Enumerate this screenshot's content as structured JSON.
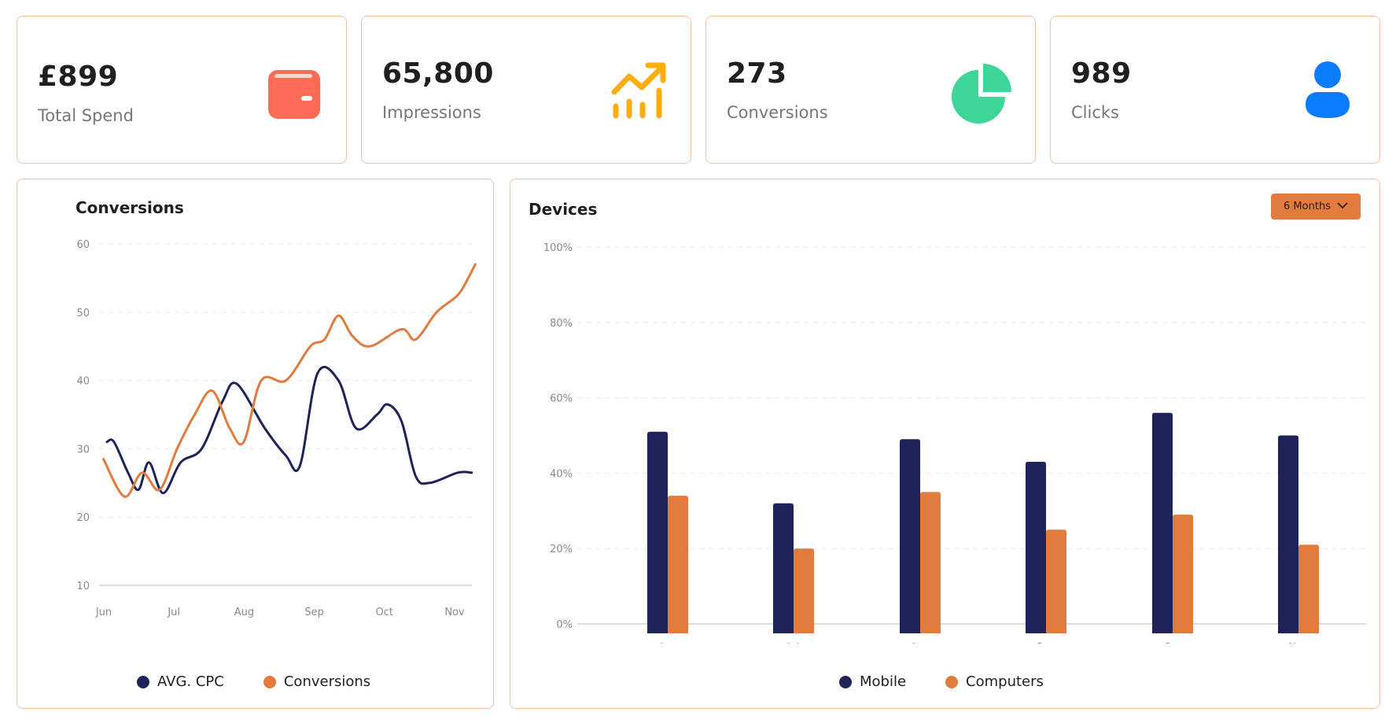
{
  "stats": [
    {
      "value": "£899",
      "label": "Total Spend",
      "icon": "wallet-icon",
      "color": "#ff6b57"
    },
    {
      "value": "65,800",
      "label": "Impressions",
      "icon": "trending-up-icon",
      "color": "#ffad0f"
    },
    {
      "value": "273",
      "label": "Conversions",
      "icon": "pie-chart-icon",
      "color": "#3dd598"
    },
    {
      "value": "989",
      "label": "Clicks",
      "icon": "user-icon",
      "color": "#0b7cff"
    }
  ],
  "conversions_panel": {
    "title": "Conversions",
    "legend": [
      {
        "label": "AVG. CPC",
        "color": "#1e2359"
      },
      {
        "label": "Conversions",
        "color": "#e27c3e"
      }
    ]
  },
  "devices_panel": {
    "title": "Devices",
    "dropdown_label": "6 Months",
    "legend": [
      {
        "label": "Mobile",
        "color": "#1e2359"
      },
      {
        "label": "Computers",
        "color": "#e27c3e"
      }
    ]
  },
  "chart_data": [
    {
      "type": "line",
      "title": "Conversions",
      "categories": [
        "Jun",
        "Jul",
        "Aug",
        "Sep",
        "Oct",
        "Nov"
      ],
      "yticks": [
        10,
        20,
        30,
        40,
        50,
        60
      ],
      "ylim": [
        10,
        60
      ],
      "series": [
        {
          "name": "AVG. CPC",
          "color": "#1e2359",
          "points": [
            [
              0,
              31
            ],
            [
              0.1,
              31
            ],
            [
              0.3,
              26.5
            ],
            [
              0.45,
              24
            ],
            [
              0.6,
              28
            ],
            [
              0.8,
              23.5
            ],
            [
              1.05,
              28
            ],
            [
              1.35,
              30
            ],
            [
              1.65,
              37
            ],
            [
              1.85,
              39.5
            ],
            [
              2.25,
              33
            ],
            [
              2.55,
              29
            ],
            [
              2.75,
              27.5
            ],
            [
              3.0,
              41
            ],
            [
              3.3,
              40
            ],
            [
              3.55,
              33
            ],
            [
              3.85,
              35
            ],
            [
              4.0,
              36.5
            ],
            [
              4.2,
              34
            ],
            [
              4.4,
              26
            ],
            [
              4.6,
              25
            ],
            [
              5.0,
              26.5
            ],
            [
              5.2,
              26.5
            ]
          ]
        },
        {
          "name": "Conversions",
          "color": "#e27c3e",
          "points": [
            [
              -0.05,
              28.5
            ],
            [
              0.25,
              23
            ],
            [
              0.5,
              26.5
            ],
            [
              0.75,
              24
            ],
            [
              1.0,
              30
            ],
            [
              1.25,
              35
            ],
            [
              1.5,
              38.5
            ],
            [
              1.75,
              33
            ],
            [
              1.95,
              31
            ],
            [
              2.2,
              40
            ],
            [
              2.55,
              40
            ],
            [
              2.9,
              45
            ],
            [
              3.1,
              46
            ],
            [
              3.3,
              49.5
            ],
            [
              3.5,
              46.5
            ],
            [
              3.75,
              45
            ],
            [
              4.2,
              47.5
            ],
            [
              4.4,
              46
            ],
            [
              4.7,
              50
            ],
            [
              5.0,
              52.5
            ],
            [
              5.15,
              55
            ],
            [
              5.25,
              57
            ]
          ]
        }
      ]
    },
    {
      "type": "bar",
      "title": "Devices",
      "categories": [
        "Jun",
        "Jul",
        "Aug",
        "Sep",
        "Oct",
        "Nov"
      ],
      "yticks": [
        "0%",
        "20%",
        "40%",
        "60%",
        "80%",
        "100%"
      ],
      "ylim": [
        0,
        100
      ],
      "series": [
        {
          "name": "Mobile",
          "color": "#1e2359",
          "values": [
            51,
            32,
            49,
            43,
            56,
            50
          ]
        },
        {
          "name": "Computers",
          "color": "#e27c3e",
          "values": [
            34,
            20,
            35,
            25,
            29,
            21
          ]
        }
      ]
    }
  ]
}
